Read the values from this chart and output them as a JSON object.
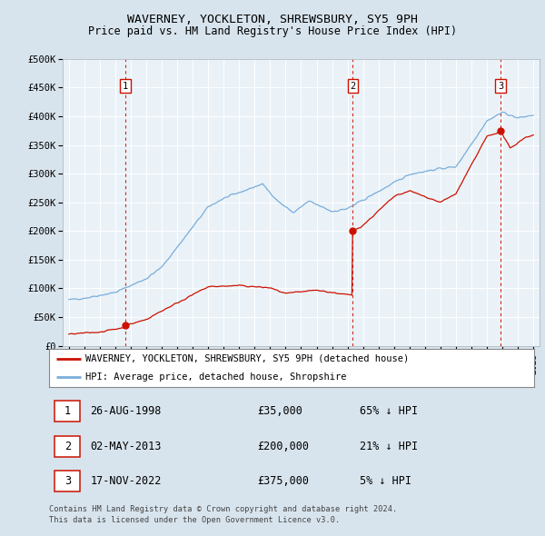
{
  "title": "WAVERNEY, YOCKLETON, SHREWSBURY, SY5 9PH",
  "subtitle": "Price paid vs. HM Land Registry's House Price Index (HPI)",
  "legend_line1": "WAVERNEY, YOCKLETON, SHREWSBURY, SY5 9PH (detached house)",
  "legend_line2": "HPI: Average price, detached house, Shropshire",
  "footer1": "Contains HM Land Registry data © Crown copyright and database right 2024.",
  "footer2": "This data is licensed under the Open Government Licence v3.0.",
  "transactions": [
    {
      "num": 1,
      "date": "26-AUG-1998",
      "date_num": 1998.65,
      "price": 35000,
      "pct": "65% ↓ HPI"
    },
    {
      "num": 2,
      "date": "02-MAY-2013",
      "date_num": 2013.33,
      "price": 200000,
      "pct": "21% ↓ HPI"
    },
    {
      "num": 3,
      "date": "17-NOV-2022",
      "date_num": 2022.88,
      "price": 375000,
      "pct": "5% ↓ HPI"
    }
  ],
  "hpi_color": "#7aadda",
  "price_color": "#cc1100",
  "bg_color": "#d8e4ed",
  "plot_bg": "#eaf2f8",
  "ylim": [
    0,
    500000
  ],
  "xlim_left": 1994.6,
  "xlim_right": 2025.4
}
